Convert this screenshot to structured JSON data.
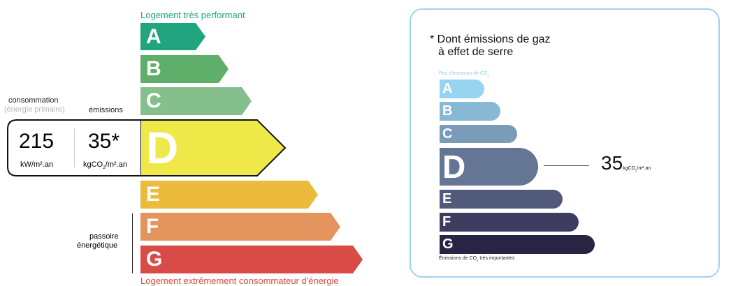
{
  "energy_label": {
    "top_caption": "Logement très performant",
    "bottom_caption": "Logement extrêmement consommateur d'énergie",
    "consumption_label": "consommation",
    "consumption_sublabel": "(énergie primaire)",
    "emissions_label": "émissions",
    "consumption_value": "215",
    "consumption_unit": "kW/m².an",
    "emissions_value": "35*",
    "emissions_unit_pre": "kgCO",
    "emissions_unit_sub": "2",
    "emissions_unit_post": "/m².an",
    "passoire_label_1": "passoire",
    "passoire_label_2": "énergétique",
    "current_class": "D",
    "classes": [
      {
        "letter": "A",
        "color": "#20a57f"
      },
      {
        "letter": "B",
        "color": "#5fae69"
      },
      {
        "letter": "C",
        "color": "#84bf8c"
      },
      {
        "letter": "D",
        "color": "#efe849"
      },
      {
        "letter": "E",
        "color": "#ecbb3b"
      },
      {
        "letter": "F",
        "color": "#e3955d"
      },
      {
        "letter": "G",
        "color": "#d94b46"
      }
    ]
  },
  "ges_label": {
    "title_line1": "* Dont émissions de gaz",
    "title_line2": "à effet de serre",
    "top_caption_pre": "Peu d'émission de CO",
    "top_caption_sub": "2",
    "bottom_caption_pre": "Émissions de CO",
    "bottom_caption_sub": "2",
    "bottom_caption_post": " très importantes",
    "current_class": "D",
    "value": "35",
    "unit_pre": "kgCO",
    "unit_sub": "2",
    "unit_post": "/m².an",
    "border_color": "#9fd3ef",
    "classes": [
      {
        "letter": "A",
        "color": "#97d4f2"
      },
      {
        "letter": "B",
        "color": "#87b8d4"
      },
      {
        "letter": "C",
        "color": "#7b9cb9"
      },
      {
        "letter": "D",
        "color": "#657594"
      },
      {
        "letter": "E",
        "color": "#525a7c"
      },
      {
        "letter": "F",
        "color": "#3e3d61"
      },
      {
        "letter": "G",
        "color": "#282544"
      }
    ]
  }
}
